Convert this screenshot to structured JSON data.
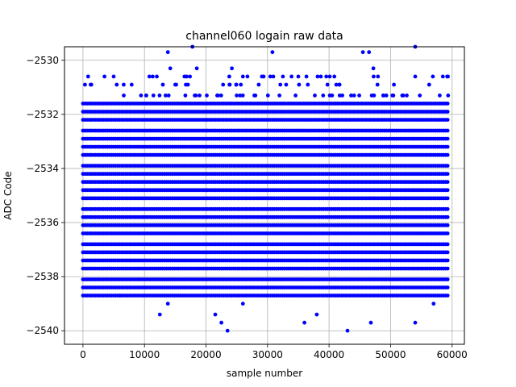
{
  "chart_data": {
    "type": "scatter",
    "title": "channel060 logain raw data",
    "xlabel": "sample number",
    "ylabel": "ADC Code",
    "xlim": [
      -3000,
      62000
    ],
    "ylim": [
      -2540.5,
      -2529.5
    ],
    "xticks": [
      0,
      10000,
      20000,
      30000,
      40000,
      50000,
      60000
    ],
    "xtick_labels": [
      "0",
      "10000",
      "20000",
      "30000",
      "40000",
      "50000",
      "60000"
    ],
    "yticks": [
      -2540,
      -2538,
      -2536,
      -2534,
      -2532,
      -2530
    ],
    "ytick_labels": [
      "−2540",
      "−2538",
      "−2536",
      "−2534",
      "−2532",
      "−2530"
    ],
    "grid": true,
    "legend": "none",
    "marker_color": "#0000ff",
    "series": [
      {
        "n_samples": 59600,
        "x_range": [
          0,
          59599
        ],
        "values_set": [
          -2540.0,
          -2539.7,
          -2539.4,
          -2539.0,
          -2538.7,
          -2538.4,
          -2538.1,
          -2537.7,
          -2537.4,
          -2537.1,
          -2536.8,
          -2536.4,
          -2536.1,
          -2535.8,
          -2535.5,
          -2535.1,
          -2534.8,
          -2534.5,
          -2534.2,
          -2533.9,
          -2533.5,
          -2533.2,
          -2532.9,
          -2532.6,
          -2532.2,
          -2531.9,
          -2531.6,
          -2531.3,
          -2530.9,
          -2530.6,
          -2530.3,
          -2530.0,
          -2529.7
        ],
        "dense_band": [
          -2538.7,
          -2531.6
        ],
        "outliers": [
          [
            6000,
            -2538.7
          ],
          [
            12500,
            -2539.4
          ],
          [
            13800,
            -2539.0
          ],
          [
            21500,
            -2539.4
          ],
          [
            22500,
            -2539.7
          ],
          [
            23500,
            -2540.0
          ],
          [
            26000,
            -2539.0
          ],
          [
            36000,
            -2539.7
          ],
          [
            38000,
            -2539.4
          ],
          [
            43000,
            -2540.0
          ],
          [
            46800,
            -2539.7
          ],
          [
            54000,
            -2539.7
          ],
          [
            57000,
            -2539.0
          ],
          [
            13800,
            -2529.7
          ],
          [
            17800,
            -2529.5
          ],
          [
            30800,
            -2529.7
          ],
          [
            45500,
            -2529.7
          ],
          [
            46500,
            -2529.7
          ],
          [
            54000,
            -2529.5
          ],
          [
            3500,
            -2530.6
          ],
          [
            5000,
            -2530.6
          ],
          [
            10800,
            -2530.6
          ],
          [
            14200,
            -2530.3
          ],
          [
            16500,
            -2530.6
          ],
          [
            18500,
            -2530.3
          ],
          [
            24200,
            -2530.3
          ],
          [
            26000,
            -2530.6
          ],
          [
            32500,
            -2530.6
          ],
          [
            35000,
            -2530.6
          ],
          [
            47200,
            -2530.3
          ],
          [
            58500,
            -2530.6
          ],
          [
            59200,
            -2530.6
          ]
        ]
      }
    ]
  }
}
